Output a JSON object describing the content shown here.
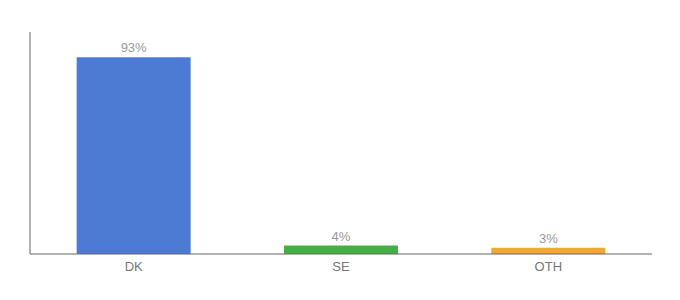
{
  "chart_data": {
    "type": "bar",
    "categories": [
      "DK",
      "SE",
      "OTH"
    ],
    "values": [
      93,
      4,
      3
    ],
    "value_labels": [
      "93%",
      "4%",
      "3%"
    ],
    "colors": [
      "#4d7bd4",
      "#44b044",
      "#f0a830"
    ],
    "ylim": [
      0,
      105
    ],
    "data_labels": true,
    "tick_labels": "x",
    "grid": false
  }
}
